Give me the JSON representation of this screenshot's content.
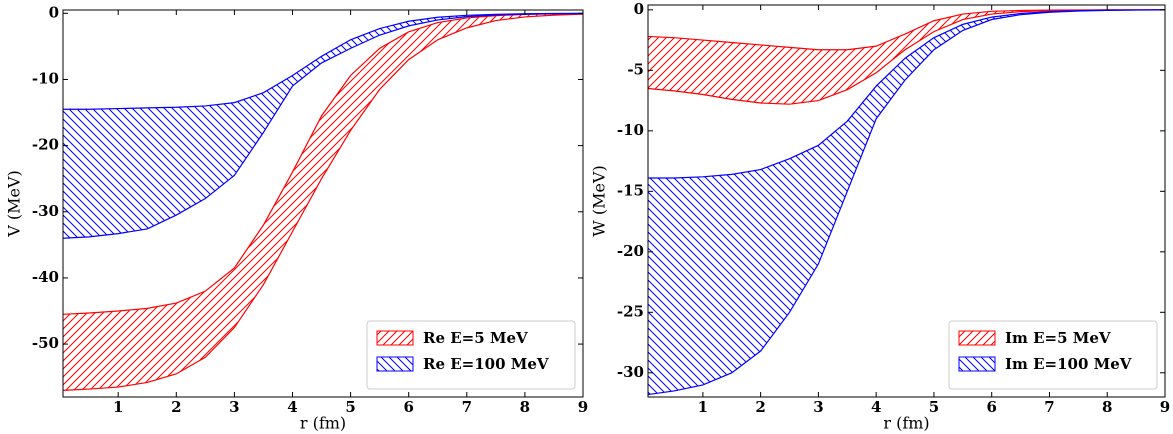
{
  "chart_data": [
    {
      "type": "band",
      "xlabel": "r (fm)",
      "ylabel": "V (MeV)",
      "x": [
        0.05,
        0.5,
        1,
        1.5,
        2,
        2.5,
        3,
        3.5,
        4,
        4.5,
        5,
        5.5,
        6,
        6.5,
        7,
        7.5,
        8,
        8.5,
        9
      ],
      "xlim": [
        0.05,
        9
      ],
      "xticks": [
        1,
        2,
        3,
        4,
        5,
        6,
        7,
        8,
        9
      ],
      "ylim": [
        -58,
        0.5
      ],
      "yticks": [
        0,
        -10,
        -20,
        -30,
        -40,
        -50
      ],
      "legend": "lower right",
      "series": [
        {
          "name": "Re E=5 MeV",
          "color": "#ff0000",
          "hatch": "////",
          "upper": [
            -45.5,
            -45.3,
            -45,
            -44.6,
            -43.8,
            -42,
            -38.5,
            -32,
            -24,
            -15.5,
            -9.4,
            -5.3,
            -2.8,
            -1.4,
            -0.7,
            -0.35,
            -0.17,
            -0.08,
            -0.04
          ],
          "lower": [
            -57,
            -56.8,
            -56.5,
            -55.8,
            -54.5,
            -52,
            -47.5,
            -41,
            -33,
            -25,
            -17.7,
            -11.5,
            -7,
            -4,
            -2.2,
            -1.1,
            -0.55,
            -0.27,
            -0.13
          ]
        },
        {
          "name": "Re E=100 MeV",
          "color": "#0000ff",
          "hatch": "\\\\\\\\",
          "upper": [
            -14.5,
            -14.5,
            -14.4,
            -14.3,
            -14.2,
            -14,
            -13.5,
            -12,
            -9.4,
            -6.5,
            -4,
            -2.3,
            -1.2,
            -0.6,
            -0.3,
            -0.15,
            -0.07,
            -0.03,
            -0.01
          ],
          "lower": [
            -34,
            -33.8,
            -33.3,
            -32.6,
            -30.5,
            -28,
            -24.5,
            -18,
            -11,
            -7.5,
            -5.3,
            -3.3,
            -1.9,
            -1,
            -0.5,
            -0.25,
            -0.12,
            -0.06,
            -0.03
          ]
        }
      ]
    },
    {
      "type": "band",
      "xlabel": "r (fm)",
      "ylabel": "W (MeV)",
      "x": [
        0.05,
        0.5,
        1,
        1.5,
        2,
        2.5,
        3,
        3.5,
        4,
        4.5,
        5,
        5.5,
        6,
        6.5,
        7,
        7.5,
        8,
        8.5,
        9
      ],
      "xlim": [
        0.05,
        9
      ],
      "xticks": [
        1,
        2,
        3,
        4,
        5,
        6,
        7,
        8,
        9
      ],
      "ylim": [
        -32,
        0.4
      ],
      "yticks": [
        0,
        -5,
        -10,
        -15,
        -20,
        -25,
        -30
      ],
      "legend": "lower right",
      "series": [
        {
          "name": "Im E=5 MeV",
          "color": "#ff0000",
          "hatch": "////",
          "upper": [
            -2.2,
            -2.3,
            -2.5,
            -2.7,
            -2.9,
            -3.1,
            -3.3,
            -3.3,
            -3,
            -2,
            -0.9,
            -0.35,
            -0.12,
            -0.05,
            -0.02,
            -0.01,
            0,
            0,
            0
          ],
          "lower": [
            -6.5,
            -6.7,
            -7,
            -7.4,
            -7.7,
            -7.8,
            -7.5,
            -6.6,
            -5.2,
            -3.3,
            -1.8,
            -0.8,
            -0.35,
            -0.15,
            -0.06,
            -0.03,
            -0.01,
            0,
            0
          ]
        },
        {
          "name": "Im E=100 MeV",
          "color": "#0000ff",
          "hatch": "\\\\\\\\",
          "upper": [
            -13.9,
            -13.9,
            -13.8,
            -13.6,
            -13.2,
            -12.3,
            -11.2,
            -9.2,
            -6.3,
            -4,
            -2.3,
            -1.2,
            -0.6,
            -0.3,
            -0.15,
            -0.07,
            -0.03,
            -0.01,
            0
          ],
          "lower": [
            -31.8,
            -31.5,
            -31,
            -30,
            -28.2,
            -25,
            -21,
            -15,
            -9,
            -5.8,
            -3.3,
            -1.7,
            -0.8,
            -0.4,
            -0.2,
            -0.1,
            -0.05,
            -0.02,
            -0.01
          ]
        }
      ]
    }
  ]
}
